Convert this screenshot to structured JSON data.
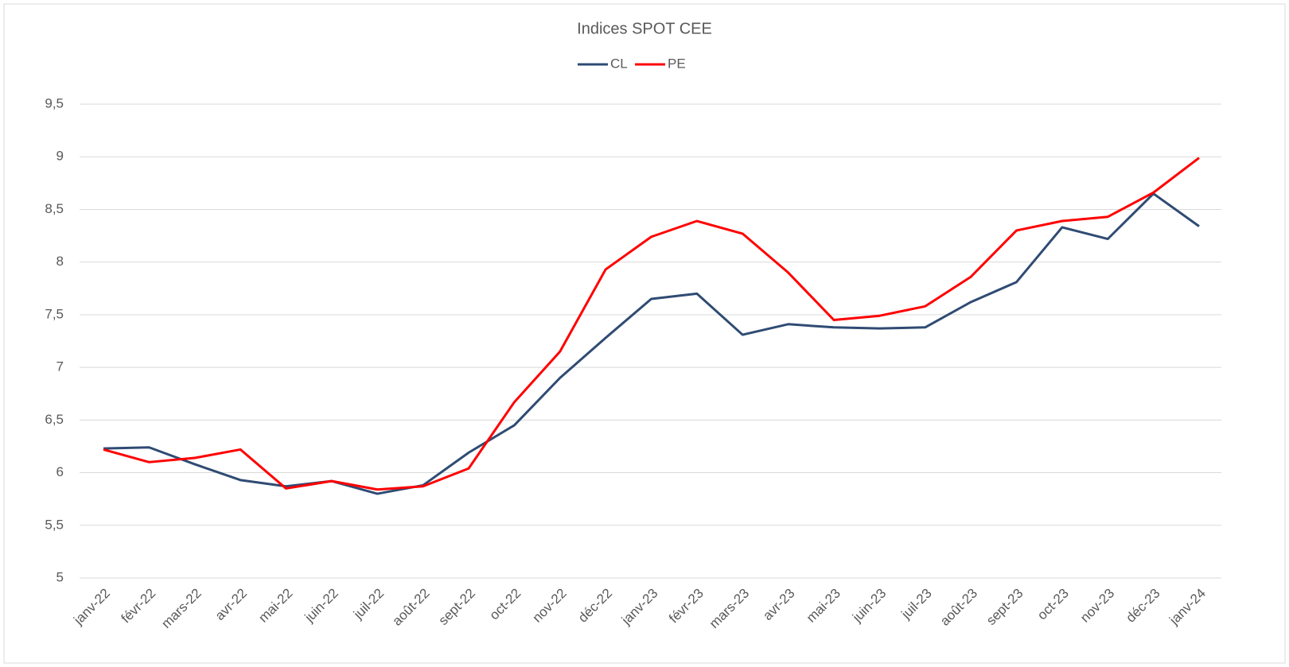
{
  "chart_data": {
    "type": "line",
    "title": "Indices SPOT CEE",
    "categories": [
      "janv-22",
      "févr-22",
      "mars-22",
      "avr-22",
      "mai-22",
      "juin-22",
      "juil-22",
      "août-22",
      "sept-22",
      "oct-22",
      "nov-22",
      "déc-22",
      "janv-23",
      "févr-23",
      "mars-23",
      "avr-23",
      "mai-23",
      "juin-23",
      "juil-23",
      "août-23",
      "sept-23",
      "oct-23",
      "nov-23",
      "déc-23",
      "janv-24"
    ],
    "series": [
      {
        "name": "CL",
        "color": "#2f4b73",
        "values": [
          6.23,
          6.24,
          6.08,
          5.93,
          5.87,
          5.92,
          5.8,
          5.88,
          6.19,
          6.45,
          6.9,
          7.28,
          7.65,
          7.7,
          7.31,
          7.41,
          7.38,
          7.37,
          7.38,
          7.62,
          7.81,
          8.33,
          8.22,
          8.65,
          8.34
        ]
      },
      {
        "name": "PE",
        "color": "#ff0000",
        "values": [
          6.22,
          6.1,
          6.14,
          6.22,
          5.85,
          5.92,
          5.84,
          5.87,
          6.04,
          6.67,
          7.15,
          7.93,
          8.24,
          8.39,
          8.27,
          7.9,
          7.45,
          7.49,
          7.58,
          7.86,
          8.3,
          8.39,
          8.43,
          8.66,
          8.99
        ]
      }
    ],
    "ylim": [
      5,
      9.5
    ],
    "yticks": [
      5,
      {
        "value": 5.5,
        "label": "5,5"
      },
      6,
      {
        "value": 6.5,
        "label": "6,5"
      },
      7,
      {
        "value": 7.5,
        "label": "7,5"
      },
      8,
      {
        "value": 8.5,
        "label": "8,5"
      },
      9,
      {
        "value": 9.5,
        "label": "9,5"
      }
    ],
    "grid": true,
    "legend": "top"
  }
}
